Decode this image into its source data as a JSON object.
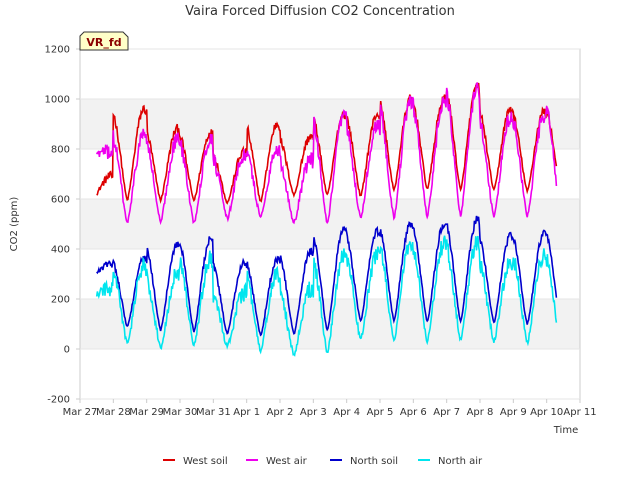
{
  "chart_data": {
    "type": "line",
    "title": "Vaira Forced Diffusion CO2 Concentration",
    "xlabel": "Time",
    "ylabel": "CO2 (ppm)",
    "ylim": [
      -200,
      1200
    ],
    "yticks": [
      -200,
      0,
      200,
      400,
      600,
      800,
      1000,
      1200
    ],
    "xlim": [
      0,
      15
    ],
    "xticks": [
      "Mar 27",
      "Mar 28",
      "Mar 29",
      "Mar 30",
      "Mar 31",
      "Apr 1",
      "Apr 2",
      "Apr 3",
      "Apr 4",
      "Apr 5",
      "Apr 6",
      "Apr 7",
      "Apr 8",
      "Apr 9",
      "Apr 10",
      "Apr 11"
    ],
    "badge": "VR_fd",
    "x_start": 0.5,
    "x_end": 14.3,
    "series": [
      {
        "name": "West soil",
        "color": "#dd0000",
        "daily_min": [
          610,
          595,
          595,
          595,
          585,
          590,
          615,
          615,
          610,
          635,
          640,
          635,
          635,
          630,
          640
        ],
        "daily_max": [
          690,
          960,
          880,
          865,
          790,
          900,
          850,
          940,
          940,
          1000,
          1000,
          1050,
          960,
          950,
          970
        ],
        "amplitude_noise": 15
      },
      {
        "name": "West air",
        "color": "#ee00ee",
        "daily_min": [
          780,
          505,
          505,
          505,
          520,
          525,
          505,
          500,
          520,
          525,
          530,
          535,
          530,
          530,
          540
        ],
        "daily_max": [
          790,
          860,
          840,
          840,
          775,
          800,
          760,
          930,
          900,
          990,
          990,
          1040,
          930,
          930,
          990
        ],
        "amplitude_noise": 25
      },
      {
        "name": "North soil",
        "color": "#0000cc",
        "daily_min": [
          300,
          90,
          75,
          70,
          60,
          55,
          60,
          75,
          110,
          115,
          110,
          110,
          105,
          100,
          100
        ],
        "daily_max": [
          340,
          360,
          420,
          440,
          350,
          360,
          390,
          480,
          470,
          500,
          500,
          520,
          455,
          460,
          480
        ],
        "amplitude_noise": 12
      },
      {
        "name": "North air",
        "color": "#00e5ee",
        "daily_min": [
          215,
          20,
          5,
          15,
          10,
          -10,
          -25,
          -15,
          35,
          30,
          30,
          35,
          30,
          25,
          20
        ],
        "daily_max": [
          240,
          330,
          300,
          360,
          225,
          300,
          240,
          380,
          380,
          430,
          420,
          430,
          350,
          380,
          370
        ],
        "amplitude_noise": 28
      }
    ],
    "legend_position": "bottom-center"
  }
}
